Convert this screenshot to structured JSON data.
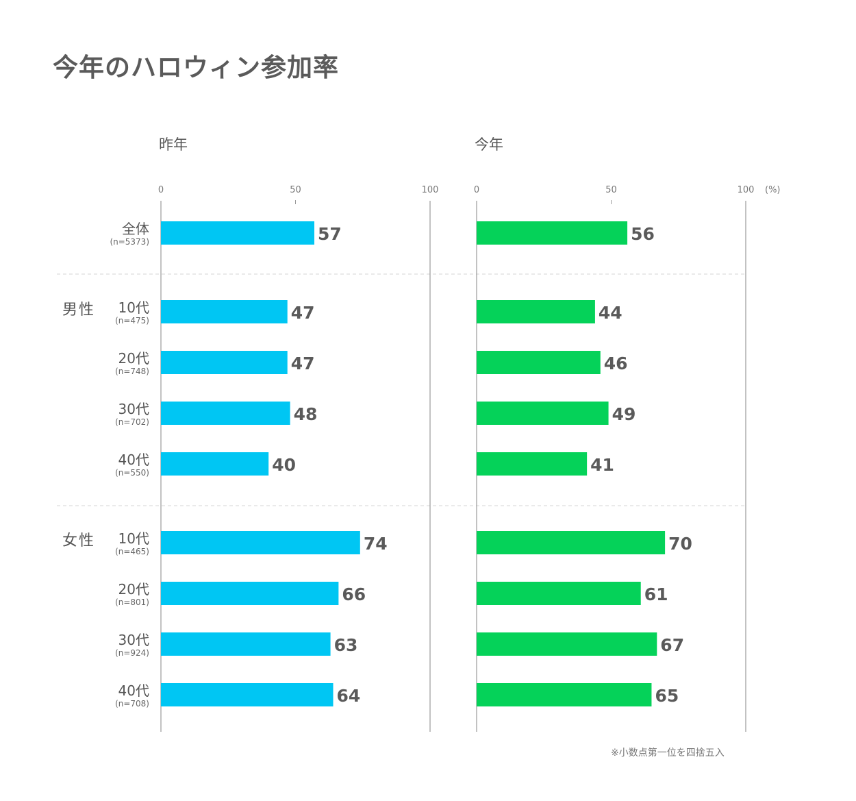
{
  "title": "今年のハロウィン参加率",
  "note": "※小数点第一位を四捨五入",
  "chart_data": {
    "type": "bar",
    "orientation": "horizontal",
    "title": "今年のハロウィン参加率",
    "unit": "(%)",
    "xlim": [
      0,
      100
    ],
    "ticks": [
      0,
      50,
      100
    ],
    "groups": [
      {
        "label": "",
        "rows": [
          {
            "label": "全体",
            "n": "(n=5373)"
          }
        ]
      },
      {
        "label": "男性",
        "rows": [
          {
            "label": "10代",
            "n": "(n=475)"
          },
          {
            "label": "20代",
            "n": "(n=748)"
          },
          {
            "label": "30代",
            "n": "(n=702)"
          },
          {
            "label": "40代",
            "n": "(n=550)"
          }
        ]
      },
      {
        "label": "女性",
        "rows": [
          {
            "label": "10代",
            "n": "(n=465)"
          },
          {
            "label": "20代",
            "n": "(n=801)"
          },
          {
            "label": "30代",
            "n": "(n=924)"
          },
          {
            "label": "40代",
            "n": "(n=708)"
          }
        ]
      }
    ],
    "series": [
      {
        "name": "昨年",
        "color": "#00c6f3",
        "values": [
          57,
          47,
          47,
          48,
          40,
          74,
          66,
          63,
          64
        ]
      },
      {
        "name": "今年",
        "color": "#05d259",
        "values": [
          56,
          44,
          46,
          49,
          41,
          70,
          61,
          67,
          65
        ]
      }
    ]
  }
}
